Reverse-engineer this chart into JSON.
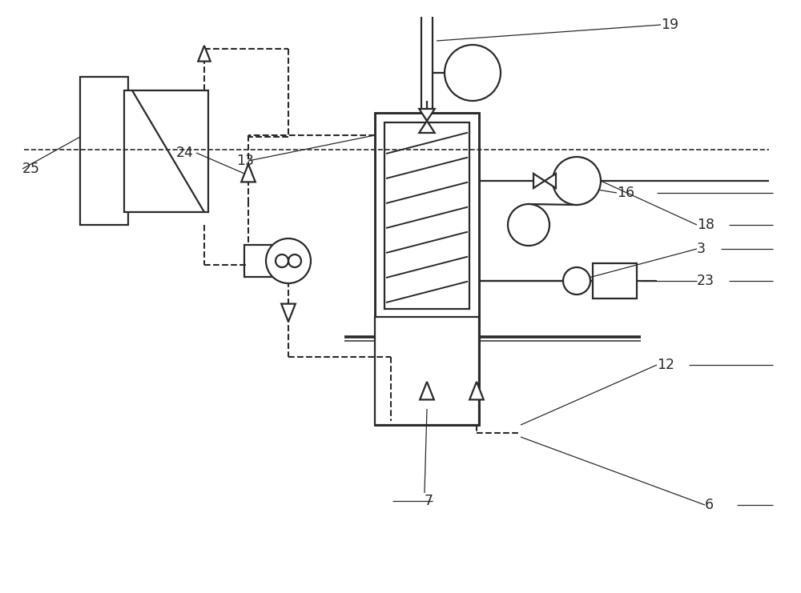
{
  "bg_color": "#ffffff",
  "line_color": "#2a2a2a",
  "figsize": [
    10.0,
    7.41
  ],
  "dpi": 100,
  "lw_main": 1.6,
  "lw_thin": 0.9,
  "lw_dash": 1.5,
  "label_fontsize": 12.5
}
